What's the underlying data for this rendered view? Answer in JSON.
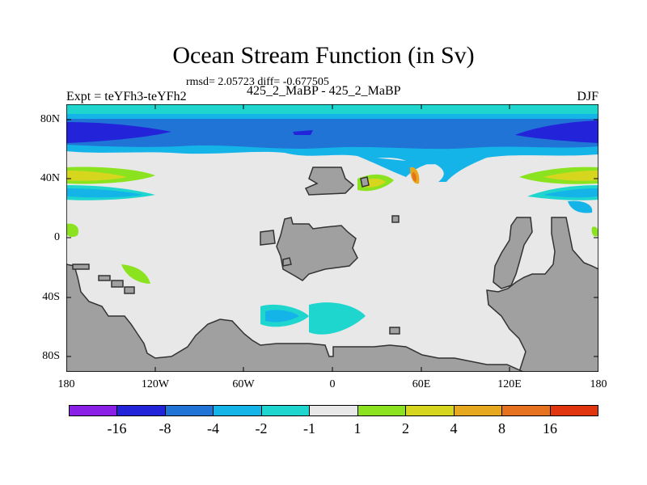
{
  "title": "Ocean Stream Function (in Sv)",
  "stats": "rmsd= 2.05723 diff= -0.677505",
  "expt": "Expt = teYFh3-teYFh2",
  "run": "425_2_MaBP - 425_2_MaBP",
  "season": "DJF",
  "lat_labels": [
    "80N",
    "40N",
    "0",
    "40S",
    "80S"
  ],
  "lon_labels": [
    "180",
    "120W",
    "60W",
    "0",
    "60E",
    "120E",
    "180"
  ],
  "colorbar": {
    "colors": [
      "#8a1fe6",
      "#2323d9",
      "#1f74d6",
      "#14b4e8",
      "#1fd6cf",
      "#e8e8e8",
      "#8be21e",
      "#d6d61f",
      "#e6a81f",
      "#e6711f",
      "#e0350f"
    ],
    "labels": [
      "-16",
      "-8",
      "-4",
      "-2",
      "-1",
      "1",
      "2",
      "4",
      "8",
      "16"
    ]
  },
  "map_colors": {
    "ocean_background": "#e8e8e8",
    "land": "#a0a0a0",
    "land_border": "#333333"
  }
}
